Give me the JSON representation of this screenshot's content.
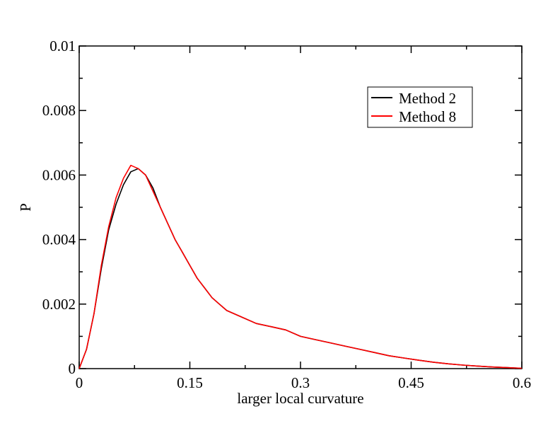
{
  "chart_data": {
    "type": "line",
    "title": "",
    "xlabel": "larger local curvature",
    "ylabel": "P",
    "xlim": [
      0,
      0.6
    ],
    "ylim": [
      0,
      0.01
    ],
    "x_ticks": [
      0,
      0.15,
      0.3,
      0.45,
      0.6
    ],
    "x_tick_labels": [
      "0",
      "0.15",
      "0.3",
      "0.45",
      "0.6"
    ],
    "y_ticks": [
      0,
      0.002,
      0.004,
      0.006,
      0.008,
      0.01
    ],
    "y_tick_labels": [
      "0",
      "0.002",
      "0.004",
      "0.006",
      "0.008",
      "0.01"
    ],
    "grid": false,
    "legend_position": "top-right",
    "series": [
      {
        "name": "Method 2",
        "color": "#000000",
        "x": [
          0.0,
          0.01,
          0.02,
          0.03,
          0.04,
          0.05,
          0.06,
          0.07,
          0.08,
          0.09,
          0.1,
          0.11,
          0.12,
          0.13,
          0.14,
          0.15,
          0.16,
          0.17,
          0.18,
          0.19,
          0.2,
          0.22,
          0.24,
          0.26,
          0.28,
          0.3,
          0.32,
          0.34,
          0.36,
          0.38,
          0.4,
          0.42,
          0.44,
          0.46,
          0.48,
          0.5,
          0.52,
          0.54,
          0.56,
          0.58,
          0.6
        ],
        "y": [
          0.0,
          0.0006,
          0.0017,
          0.0031,
          0.0043,
          0.0051,
          0.0057,
          0.0061,
          0.0062,
          0.006,
          0.0056,
          0.005,
          0.0045,
          0.004,
          0.0036,
          0.0032,
          0.0028,
          0.0025,
          0.0022,
          0.002,
          0.0018,
          0.0016,
          0.0014,
          0.0013,
          0.0012,
          0.001,
          0.0009,
          0.0008,
          0.0007,
          0.0006,
          0.0005,
          0.0004,
          0.00033,
          0.00026,
          0.0002,
          0.00015,
          0.00011,
          8e-05,
          5e-05,
          3e-05,
          1e-05
        ]
      },
      {
        "name": "Method 8",
        "color": "#ff0000",
        "x": [
          0.0,
          0.01,
          0.02,
          0.03,
          0.04,
          0.05,
          0.06,
          0.07,
          0.08,
          0.09,
          0.1,
          0.11,
          0.12,
          0.13,
          0.14,
          0.15,
          0.16,
          0.17,
          0.18,
          0.19,
          0.2,
          0.22,
          0.24,
          0.26,
          0.28,
          0.3,
          0.32,
          0.34,
          0.36,
          0.38,
          0.4,
          0.42,
          0.44,
          0.46,
          0.48,
          0.5,
          0.52,
          0.54,
          0.56,
          0.58,
          0.6
        ],
        "y": [
          0.0,
          0.0006,
          0.0017,
          0.0032,
          0.0044,
          0.0053,
          0.0059,
          0.0063,
          0.0062,
          0.006,
          0.0055,
          0.005,
          0.0045,
          0.004,
          0.0036,
          0.0032,
          0.0028,
          0.0025,
          0.0022,
          0.002,
          0.0018,
          0.0016,
          0.0014,
          0.0013,
          0.0012,
          0.001,
          0.0009,
          0.0008,
          0.0007,
          0.0006,
          0.0005,
          0.0004,
          0.00033,
          0.00026,
          0.0002,
          0.00015,
          0.00011,
          8e-05,
          5e-05,
          3e-05,
          1e-05
        ]
      }
    ]
  }
}
